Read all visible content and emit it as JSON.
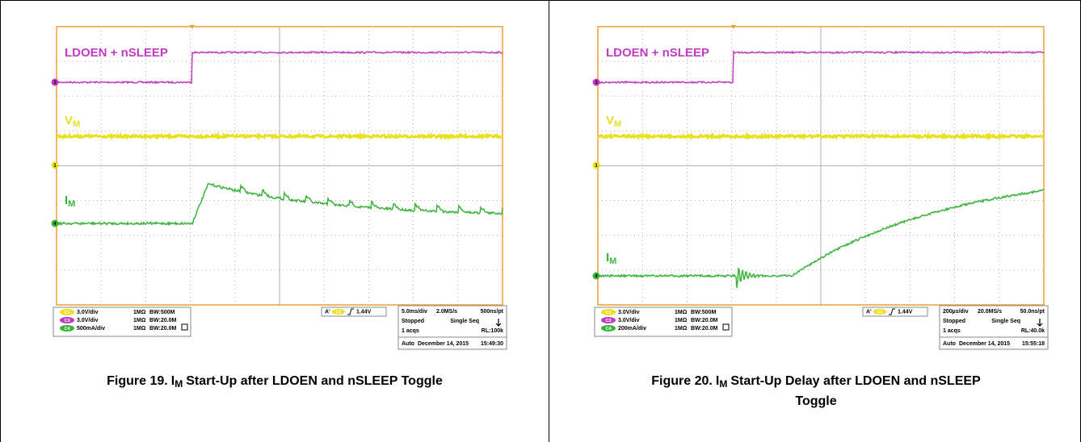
{
  "figures": [
    {
      "scope": {
        "labels": {
          "enable": "LDOEN + nSLEEP",
          "vm": {
            "main": "V",
            "sub": "M"
          },
          "im": {
            "main": "I",
            "sub": "M"
          }
        },
        "markers": [
          "3",
          "1",
          "4"
        ],
        "channels": [
          {
            "badge": "C1",
            "scale": "3.0V/div",
            "impedance": "1MΩ",
            "bandwidth": "BW:500M"
          },
          {
            "badge": "C3",
            "scale": "3.0V/div",
            "impedance": "1MΩ",
            "bandwidth": "BW:20.0M"
          },
          {
            "badge": "C4",
            "scale": "500mA/div",
            "impedance": "1MΩ",
            "bandwidth": "BW:20.0M"
          }
        ],
        "trigger": {
          "prefix": "A'",
          "badge": "C1",
          "level": "1.44V"
        },
        "acquisition": {
          "timebase": "5.0ms/div",
          "sample_rate": "2.0MS/s",
          "resolution": "500ns/pt",
          "state": "Stopped",
          "mode": "Single Seq",
          "acqs": "1 acqs",
          "record_length": "RL:100k",
          "trigger_mode": "Auto",
          "date": "December 14, 2015",
          "time": "15:49:30"
        }
      },
      "caption": {
        "number": "Figure 19.",
        "symbol": "I",
        "sub": "M",
        "lines": [
          "Start-Up after LDOEN and nSLEEP Toggle"
        ]
      }
    },
    {
      "scope": {
        "labels": {
          "enable": "LDOEN + nSLEEP",
          "vm": {
            "main": "V",
            "sub": "M"
          },
          "im": {
            "main": "I",
            "sub": "M"
          }
        },
        "markers": [
          "3",
          "1",
          "4"
        ],
        "channels": [
          {
            "badge": "C1",
            "scale": "3.0V/div",
            "impedance": "1MΩ",
            "bandwidth": "BW:500M"
          },
          {
            "badge": "C3",
            "scale": "3.0V/div",
            "impedance": "1MΩ",
            "bandwidth": "BW:20.0M"
          },
          {
            "badge": "C4",
            "scale": "200mA/div",
            "impedance": "1MΩ",
            "bandwidth": "BW:20.0M"
          }
        ],
        "trigger": {
          "prefix": "A'",
          "badge": "C1",
          "level": "1.44V"
        },
        "acquisition": {
          "timebase": "200µs/div",
          "sample_rate": "20.0MS/s",
          "resolution": "50.0ns/pt",
          "state": "Stopped",
          "mode": "Single Seq",
          "acqs": "1 acqs",
          "record_length": "RL:40.0k",
          "trigger_mode": "Auto",
          "date": "December 14, 2015",
          "time": "15:55:18"
        }
      },
      "caption": {
        "number": "Figure 20.",
        "symbol": "I",
        "sub": "M",
        "lines": [
          "Start-Up Delay after LDOEN and nSLEEP",
          "Toggle"
        ]
      }
    }
  ]
}
